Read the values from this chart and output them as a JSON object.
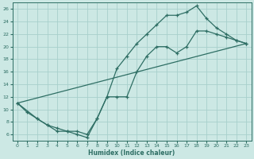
{
  "xlabel": "Humidex (Indice chaleur)",
  "bg_color": "#cce8e4",
  "grid_color": "#a8d0cc",
  "line_color": "#2e6e64",
  "xlim": [
    -0.5,
    23.5
  ],
  "ylim": [
    5,
    27
  ],
  "xticks": [
    0,
    1,
    2,
    3,
    4,
    5,
    6,
    7,
    8,
    9,
    10,
    11,
    12,
    13,
    14,
    15,
    16,
    17,
    18,
    19,
    20,
    21,
    22,
    23
  ],
  "yticks": [
    6,
    8,
    10,
    12,
    14,
    16,
    18,
    20,
    22,
    24,
    26
  ],
  "line1_x": [
    0,
    1,
    2,
    3,
    4,
    5,
    6,
    7,
    8,
    9,
    10,
    11,
    12,
    13,
    14,
    15,
    16,
    17,
    18,
    19,
    20,
    21,
    22,
    23
  ],
  "line1_y": [
    11,
    9.5,
    8.5,
    7.5,
    6.5,
    6.5,
    6,
    5.5,
    8.5,
    12,
    16.5,
    18.5,
    20.5,
    22,
    23.5,
    25,
    25,
    25.5,
    26.5,
    24.5,
    23,
    22,
    21,
    20.5
  ],
  "line2_x": [
    0,
    2,
    3,
    4,
    5,
    6,
    7,
    8,
    9,
    10,
    11,
    12,
    13,
    14,
    15,
    16,
    17,
    18,
    19,
    20,
    21,
    22,
    23
  ],
  "line2_y": [
    11,
    8.5,
    7.5,
    7,
    6.5,
    6.5,
    6,
    8.5,
    12,
    12,
    12,
    16,
    18.5,
    20,
    20,
    19,
    20,
    22.5,
    22.5,
    22,
    21.5,
    21,
    20.5
  ],
  "line3_x": [
    0,
    23
  ],
  "line3_y": [
    11,
    20.5
  ]
}
